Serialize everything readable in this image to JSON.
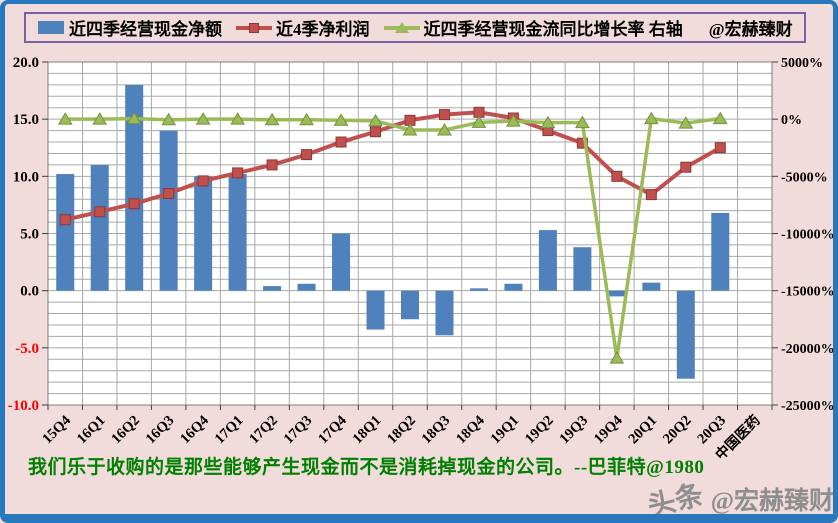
{
  "page": {
    "background_color": "#F2DBDB",
    "frame_color": "#2878BE"
  },
  "legend": {
    "border_color": "#7A5FA5",
    "items": [
      {
        "label": "近四季经营现金净额",
        "marker": "bar-swatch",
        "color": "#4F81BD"
      },
      {
        "label": "近4季净利润",
        "marker": "line-square",
        "color": "#C0504D"
      },
      {
        "label": "近四季经营现金流同比增长率 右轴",
        "marker": "line-triangle",
        "color": "#9BBB59"
      }
    ],
    "brand": "@宏赫臻财"
  },
  "chart_data": {
    "type": "combo-bar-line",
    "categories": [
      "15Q4",
      "16Q1",
      "16Q2",
      "16Q3",
      "16Q4",
      "17Q1",
      "17Q2",
      "17Q3",
      "17Q4",
      "18Q1",
      "18Q2",
      "18Q3",
      "18Q4",
      "19Q1",
      "19Q2",
      "19Q3",
      "19Q4",
      "20Q1",
      "20Q2",
      "20Q3"
    ],
    "extra_category_label": "中国医药",
    "series": [
      {
        "name": "近四季经营现金净额",
        "type": "bar",
        "axis": "left",
        "color": "#4F81BD",
        "values": [
          10.2,
          11.0,
          18.0,
          14.0,
          10.0,
          10.2,
          0.4,
          0.6,
          5.0,
          -3.4,
          -2.5,
          -3.9,
          0.2,
          0.6,
          5.3,
          3.8,
          -0.5,
          0.7,
          -7.7,
          6.8
        ]
      },
      {
        "name": "近4季净利润",
        "type": "line",
        "marker": "square",
        "axis": "left",
        "color": "#C0504D",
        "marker_stroke": "#8C3836",
        "values": [
          6.2,
          6.9,
          7.6,
          8.5,
          9.6,
          10.3,
          11.0,
          11.9,
          13.0,
          13.9,
          14.9,
          15.4,
          15.6,
          15.1,
          14.0,
          12.9,
          10.0,
          8.4,
          10.8,
          12.5
        ]
      },
      {
        "name": "近四季经营现金流同比增长率",
        "type": "line",
        "marker": "triangle",
        "axis": "right",
        "color": "#9BBB59",
        "marker_stroke": "#77903C",
        "values_pct": [
          0,
          0,
          50,
          -50,
          0,
          0,
          -50,
          -50,
          -100,
          -150,
          -950,
          -950,
          -280,
          -170,
          -300,
          -300,
          -20900,
          50,
          -350,
          50
        ]
      }
    ],
    "left_axis": {
      "min": -10,
      "max": 20,
      "ticks": [
        "20.0",
        "15.0",
        "10.0",
        "5.0",
        "0.0",
        "-5.0",
        "-10.0"
      ],
      "tick_values": [
        20,
        15,
        10,
        5,
        0,
        -5,
        -10
      ],
      "positive_color": "#000000",
      "negative_color": "#FF0000"
    },
    "right_axis": {
      "min": -25000,
      "max": 5000,
      "ticks": [
        "5000%",
        "0%",
        "-5000%",
        "-10000%",
        "-15000%",
        "-20000%",
        "-25000%"
      ],
      "tick_values": [
        5000,
        0,
        -5000,
        -10000,
        -15000,
        -20000,
        -25000
      ],
      "label_color": "#000000"
    },
    "grid": {
      "horizontal_step": 1,
      "vertical_per_category": true,
      "gridline_color": "#A8A8A8",
      "plot_background": "#FFFFFF"
    },
    "legend_position": "top"
  },
  "footer": {
    "quote": "我们乐于收购的是那些能够产生现金而不是消耗掉现金的公司。--巴菲特@1980",
    "quote_color": "#008000",
    "watermark_part1": "头条",
    "watermark_part2": "@宏赫臻财"
  }
}
